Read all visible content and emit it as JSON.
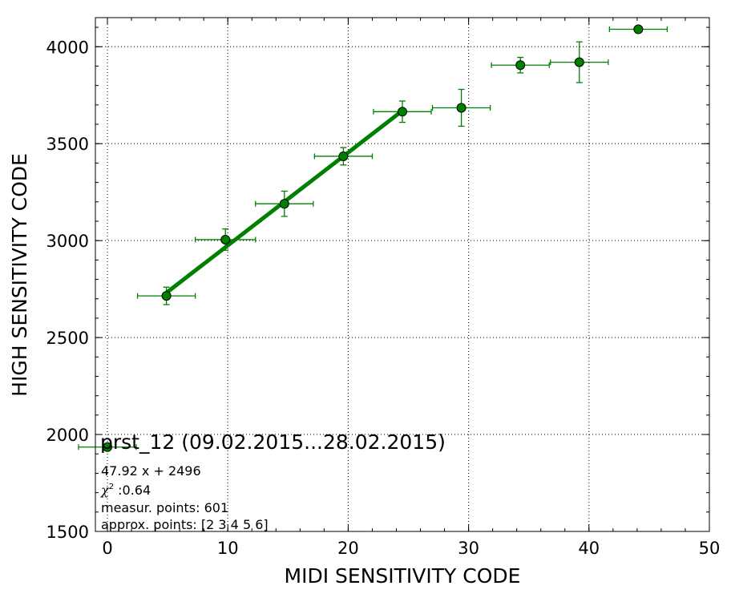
{
  "chart_data": {
    "type": "scatter",
    "xlabel": "MIDI SENSITIVITY CODE",
    "ylabel": "HIGH SENSITIVITY CODE",
    "xlim": [
      -1,
      50
    ],
    "ylim": [
      1500,
      4150
    ],
    "xticks": [
      0,
      10,
      20,
      30,
      40,
      50
    ],
    "yticks": [
      1500,
      2000,
      2500,
      3000,
      3500,
      4000
    ],
    "grid": true,
    "point_color": "#008000",
    "line_color": "#008000",
    "points": [
      {
        "x": 0.0,
        "y": 1935,
        "xerr": 2.4,
        "yerr": 0
      },
      {
        "x": 4.9,
        "y": 2715,
        "xerr": 2.4,
        "yerr": 45
      },
      {
        "x": 9.8,
        "y": 3005,
        "xerr": 2.5,
        "yerr": 55
      },
      {
        "x": 14.7,
        "y": 3190,
        "xerr": 2.4,
        "yerr": 65
      },
      {
        "x": 19.6,
        "y": 3435,
        "xerr": 2.4,
        "yerr": 45
      },
      {
        "x": 24.5,
        "y": 3665,
        "xerr": 2.4,
        "yerr": 55
      },
      {
        "x": 29.4,
        "y": 3685,
        "xerr": 2.4,
        "yerr": 95
      },
      {
        "x": 34.3,
        "y": 3905,
        "xerr": 2.4,
        "yerr": 40
      },
      {
        "x": 39.2,
        "y": 3920,
        "xerr": 2.4,
        "yerr": 105
      },
      {
        "x": 44.1,
        "y": 4090,
        "xerr": 2.4,
        "yerr": 0
      }
    ],
    "fit_line": {
      "slope": 47.92,
      "intercept": 2496,
      "x_range": [
        4.9,
        24.5
      ]
    },
    "annotation": {
      "title": "prst_12 (09.02.2015...28.02.2015)",
      "equation": "47.92 x + 2496",
      "chi2_symbol": "χ",
      "chi2_sup": "2",
      "chi2_value": " :0.64",
      "measur_points": "measur. points: 601",
      "approx_points": "approx. points: [2 3 4 5 6]"
    }
  }
}
